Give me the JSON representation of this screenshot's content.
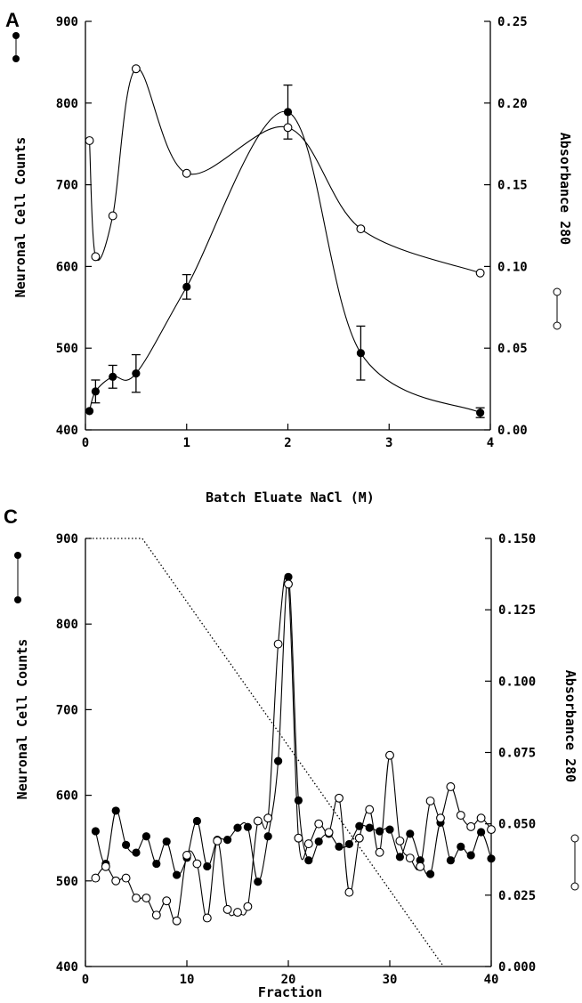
{
  "chart_data": [
    {
      "panel": "A",
      "type": "line",
      "xlabel": "Batch Eluate  NaCl (M)",
      "ylabel_left": "Neuronal Cell Counts",
      "ylabel_right": "Absorbance 280",
      "xlim": [
        0,
        4
      ],
      "ylim_left": [
        400,
        900
      ],
      "ylim_right": [
        0.0,
        0.25
      ],
      "x_ticks": [
        "0",
        "1",
        "2",
        "3",
        "4"
      ],
      "y_left_ticks": [
        "400",
        "500",
        "600",
        "700",
        "800",
        "900"
      ],
      "y_right_ticks": [
        "0.00",
        "0.05",
        "0.10",
        "0.15",
        "0.20",
        "0.25"
      ],
      "series": [
        {
          "marker": "filled",
          "axis": "left",
          "x": [
            0.04,
            0.1,
            0.27,
            0.5,
            1.0,
            2.0,
            2.72,
            3.9
          ],
          "y": [
            423,
            447,
            465,
            469,
            575,
            789,
            494,
            421
          ],
          "error": [
            0,
            14,
            14,
            23,
            15,
            33,
            33,
            6
          ]
        },
        {
          "marker": "open",
          "axis": "right",
          "x": [
            0.04,
            0.1,
            0.27,
            0.5,
            1.0,
            2.0,
            2.72,
            3.9
          ],
          "y": [
            0.177,
            0.106,
            0.131,
            0.221,
            0.157,
            0.185,
            0.123,
            0.096
          ]
        }
      ]
    },
    {
      "panel": "C",
      "type": "line",
      "xlabel": "Fraction",
      "ylabel_left": "Neuronal Cell Counts",
      "ylabel_right": "Absorbance 280",
      "xlim": [
        0,
        40
      ],
      "ylim_left": [
        400,
        900
      ],
      "ylim_right": [
        0.0,
        0.15
      ],
      "x_ticks": [
        "0",
        "10",
        "20",
        "30",
        "40"
      ],
      "y_left_ticks": [
        "400",
        "500",
        "600",
        "700",
        "800",
        "900"
      ],
      "y_right_ticks": [
        "0.000",
        "0.025",
        "0.050",
        "0.075",
        "0.100",
        "0.125",
        "0.150"
      ],
      "series": [
        {
          "marker": "filled",
          "axis": "left",
          "x": [
            1,
            2,
            3,
            4,
            5,
            6,
            7,
            8,
            9,
            10,
            11,
            12,
            13,
            14,
            15,
            16,
            17,
            18,
            19,
            20,
            21,
            22,
            23,
            24,
            25,
            26,
            27,
            28,
            29,
            30,
            31,
            32,
            33,
            34,
            35,
            36,
            37,
            38,
            39,
            40
          ],
          "y": [
            558,
            520,
            582,
            542,
            533,
            552,
            520,
            546,
            507,
            527,
            570,
            517,
            548,
            548,
            562,
            563,
            499,
            552,
            640,
            855,
            594,
            524,
            546,
            555,
            540,
            543,
            564,
            562,
            558,
            560,
            528,
            555,
            524,
            508,
            568,
            524,
            540,
            530,
            557,
            526
          ]
        },
        {
          "marker": "open",
          "axis": "right",
          "x": [
            1,
            2,
            3,
            4,
            5,
            6,
            7,
            8,
            9,
            10,
            11,
            12,
            13,
            14,
            15,
            16,
            17,
            18,
            19,
            20,
            21,
            22,
            23,
            24,
            25,
            26,
            27,
            28,
            29,
            30,
            31,
            32,
            33,
            34,
            35,
            36,
            37,
            38,
            39,
            40
          ],
          "y": [
            0.031,
            0.035,
            0.03,
            0.031,
            0.024,
            0.024,
            0.018,
            0.023,
            0.016,
            0.039,
            0.036,
            0.017,
            0.044,
            0.02,
            0.019,
            0.021,
            0.051,
            0.052,
            0.113,
            0.134,
            0.045,
            0.043,
            0.05,
            0.047,
            0.059,
            0.026,
            0.045,
            0.055,
            0.04,
            0.074,
            0.044,
            0.038,
            0.035,
            0.058,
            0.052,
            0.063,
            0.053,
            0.049,
            0.052,
            0.048
          ]
        },
        {
          "marker": "dotted",
          "axis": "right",
          "x": [
            0,
            5.6,
            35.3
          ],
          "y": [
            0.15,
            0.15,
            0.0
          ]
        }
      ]
    }
  ]
}
